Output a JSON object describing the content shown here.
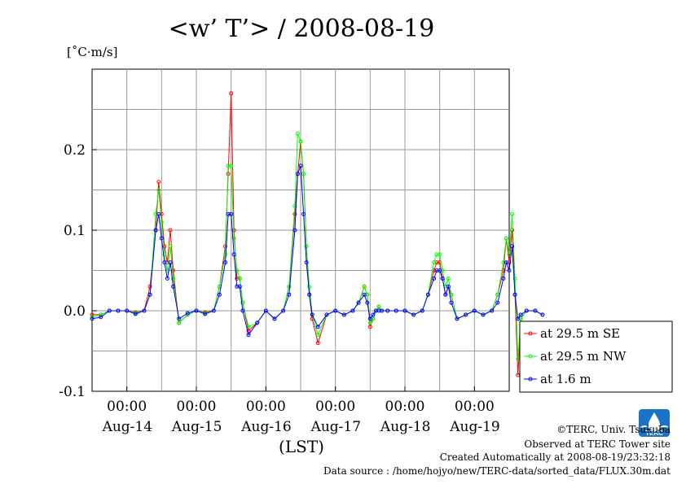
{
  "chart_data": {
    "type": "line",
    "title": "<w’ T’> / 2008-08-19",
    "ylabel": "[˚C·m/s]",
    "xlabel": "(LST)",
    "ylim": [
      -0.1,
      0.3
    ],
    "yticks": [
      -0.1,
      0.0,
      0.1,
      0.2
    ],
    "ytick_labels": [
      "-0.1",
      "0.0",
      "0.1",
      "0.2"
    ],
    "xlim_days": [
      13.5,
      19.5
    ],
    "xticks": [
      {
        "day": 14,
        "time": "00:00",
        "date": "Aug-14"
      },
      {
        "day": 15,
        "time": "00:00",
        "date": "Aug-15"
      },
      {
        "day": 16,
        "time": "00:00",
        "date": "Aug-16"
      },
      {
        "day": 17,
        "time": "00:00",
        "date": "Aug-17"
      },
      {
        "day": 18,
        "time": "00:00",
        "date": "Aug-18"
      },
      {
        "day": 19,
        "time": "00:00",
        "date": "Aug-19"
      }
    ],
    "x": [
      "08-13 12:00",
      "08-13 15:00",
      "08-13 18:00",
      "08-13 21:00",
      "08-14 00:00",
      "08-14 03:00",
      "08-14 06:00",
      "08-14 08:00",
      "08-14 10:00",
      "08-14 11:00",
      "08-14 12:00",
      "08-14 13:00",
      "08-14 14:00",
      "08-14 15:00",
      "08-14 16:00",
      "08-14 18:00",
      "08-14 21:00",
      "08-15 00:00",
      "08-15 03:00",
      "08-15 06:00",
      "08-15 08:00",
      "08-15 10:00",
      "08-15 11:00",
      "08-15 12:00",
      "08-15 13:00",
      "08-15 14:00",
      "08-15 15:00",
      "08-15 16:00",
      "08-15 18:00",
      "08-15 21:00",
      "08-16 00:00",
      "08-16 03:00",
      "08-16 06:00",
      "08-16 08:00",
      "08-16 10:00",
      "08-16 11:00",
      "08-16 12:00",
      "08-16 13:00",
      "08-16 14:00",
      "08-16 15:00",
      "08-16 16:00",
      "08-16 18:00",
      "08-16 21:00",
      "08-17 00:00",
      "08-17 03:00",
      "08-17 06:00",
      "08-17 08:00",
      "08-17 10:00",
      "08-17 11:00",
      "08-17 12:00",
      "08-17 13:00",
      "08-17 14:00",
      "08-17 15:00",
      "08-17 16:00",
      "08-17 18:00",
      "08-17 21:00",
      "08-18 00:00",
      "08-18 03:00",
      "08-18 06:00",
      "08-18 08:00",
      "08-18 10:00",
      "08-18 11:00",
      "08-18 12:00",
      "08-18 13:00",
      "08-18 14:00",
      "08-18 15:00",
      "08-18 16:00",
      "08-18 18:00",
      "08-18 21:00",
      "08-19 00:00",
      "08-19 03:00",
      "08-19 06:00",
      "08-19 08:00",
      "08-19 10:00",
      "08-19 11:00",
      "08-19 12:00",
      "08-19 13:00",
      "08-19 14:00",
      "08-19 15:00",
      "08-19 16:00",
      "08-19 18:00",
      "08-19 21:00",
      "08-19 23:30"
    ],
    "series": [
      {
        "name": "at 29.5 m SE",
        "color": "#ff0000",
        "values": [
          -0.005,
          -0.005,
          0.0,
          0.0,
          0.0,
          -0.002,
          0.0,
          0.03,
          0.1,
          0.16,
          0.12,
          0.08,
          0.06,
          0.1,
          0.05,
          -0.015,
          -0.005,
          0.0,
          -0.002,
          0.0,
          0.03,
          0.08,
          0.17,
          0.27,
          0.1,
          0.04,
          0.04,
          0.01,
          -0.025,
          -0.015,
          0.0,
          -0.01,
          0.0,
          0.03,
          0.12,
          0.17,
          0.21,
          0.17,
          0.08,
          0.02,
          -0.01,
          -0.04,
          -0.005,
          0.0,
          -0.005,
          0.0,
          0.01,
          0.03,
          0.02,
          -0.02,
          -0.01,
          0.0,
          0.005,
          0.0,
          0.0,
          0.0,
          0.0,
          -0.005,
          0.0,
          0.02,
          0.05,
          0.06,
          0.06,
          0.04,
          0.02,
          0.03,
          0.02,
          -0.01,
          -0.005,
          0.0,
          -0.005,
          0.0,
          0.02,
          0.05,
          0.09,
          0.06,
          0.1,
          0.02,
          -0.08,
          -0.01,
          0.0,
          0.0,
          -0.005
        ]
      },
      {
        "name": "at 29.5 m NW",
        "color": "#00ff00",
        "values": [
          -0.008,
          -0.005,
          0.0,
          0.0,
          0.0,
          -0.003,
          0.0,
          0.02,
          0.12,
          0.15,
          0.11,
          0.07,
          0.05,
          0.08,
          0.04,
          -0.015,
          -0.005,
          0.0,
          -0.003,
          0.0,
          0.03,
          0.07,
          0.18,
          0.18,
          0.09,
          0.05,
          0.04,
          0.01,
          -0.02,
          -0.015,
          0.0,
          -0.01,
          0.0,
          0.03,
          0.13,
          0.22,
          0.21,
          0.17,
          0.08,
          0.03,
          -0.005,
          -0.03,
          -0.005,
          0.0,
          -0.005,
          0.0,
          0.01,
          0.03,
          0.02,
          -0.015,
          -0.01,
          0.0,
          0.005,
          0.0,
          0.0,
          0.0,
          0.0,
          -0.005,
          0.0,
          0.02,
          0.06,
          0.07,
          0.07,
          0.05,
          0.03,
          0.04,
          0.02,
          -0.01,
          -0.005,
          0.0,
          -0.005,
          0.0,
          0.02,
          0.06,
          0.09,
          0.07,
          0.12,
          0.04,
          -0.06,
          -0.01,
          0.0,
          0.0,
          -0.005
        ]
      },
      {
        "name": "at 1.6 m",
        "color": "#0000ff",
        "values": [
          -0.01,
          -0.008,
          0.0,
          0.0,
          0.0,
          -0.004,
          0.0,
          0.02,
          0.1,
          0.12,
          0.09,
          0.06,
          0.04,
          0.06,
          0.03,
          -0.01,
          -0.003,
          0.0,
          -0.004,
          0.0,
          0.02,
          0.06,
          0.12,
          0.12,
          0.07,
          0.03,
          0.03,
          0.0,
          -0.03,
          -0.015,
          0.0,
          -0.01,
          0.0,
          0.02,
          0.1,
          0.17,
          0.18,
          0.12,
          0.06,
          0.02,
          -0.005,
          -0.02,
          -0.005,
          0.0,
          -0.005,
          0.0,
          0.01,
          0.02,
          0.01,
          -0.01,
          -0.005,
          0.0,
          0.0,
          0.0,
          0.0,
          0.0,
          0.0,
          -0.005,
          0.0,
          0.02,
          0.04,
          0.05,
          0.05,
          0.04,
          0.02,
          0.03,
          0.01,
          -0.01,
          -0.005,
          0.0,
          -0.005,
          0.0,
          0.01,
          0.04,
          0.06,
          0.05,
          0.08,
          0.02,
          -0.01,
          -0.005,
          0.0,
          0.0,
          -0.005
        ]
      }
    ],
    "grid": true,
    "legend_position": "right"
  },
  "footer": {
    "copyright": "©TERC, Univ. Tsukuba",
    "site": "Observed at TERC Tower site",
    "created": "Created Automatically at 2008-08-19/23:32:18",
    "source": "Data source : /home/hojyo/new/TERC-data/sorted_data/FLUX.30m.dat"
  },
  "logo": {
    "text": "TERC",
    "color": "#1a73c8"
  }
}
